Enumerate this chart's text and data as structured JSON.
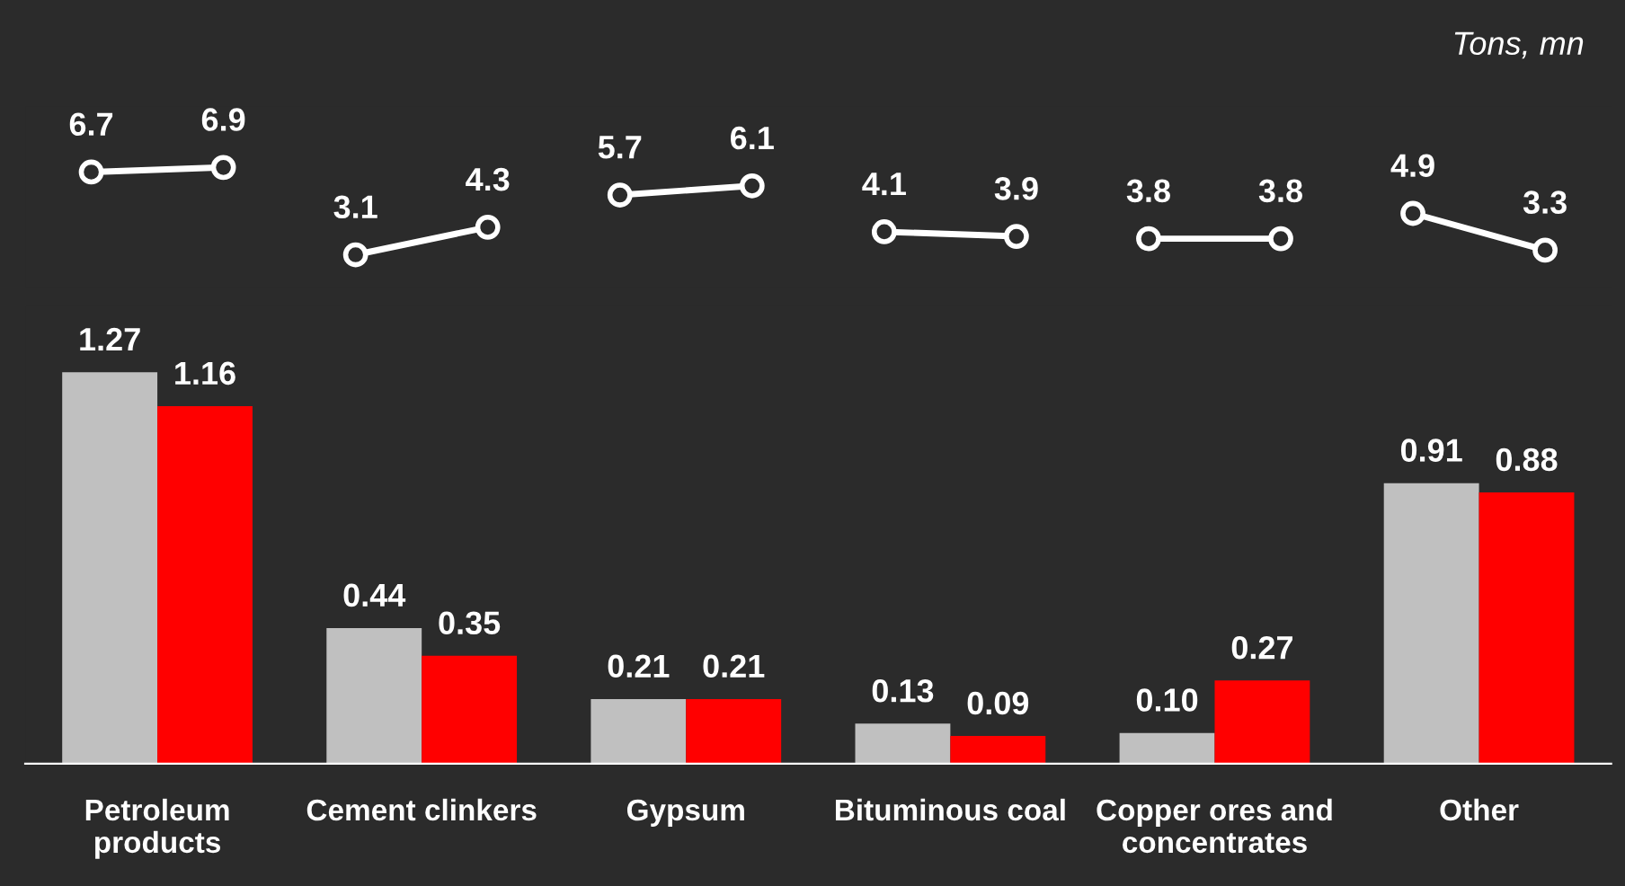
{
  "chart_data": [
    {
      "type": "line",
      "categories": [
        null,
        null,
        null,
        null,
        null,
        null,
        null,
        null,
        null,
        null,
        null,
        null
      ],
      "tick_labels": false,
      "data_labels": true,
      "marker": "circle",
      "line_style": "solid",
      "legend": false,
      "annotations": [
        "Tons, mn"
      ],
      "series": [
        {
          "color": "#ffffff",
          "values": [
            6.7,
            6.9,
            null,
            null,
            null,
            null,
            null,
            null,
            null,
            null,
            null,
            null
          ]
        },
        {
          "color": "#ffffff",
          "values": [
            null,
            null,
            3.1,
            4.3,
            null,
            null,
            null,
            null,
            null,
            null,
            null,
            null
          ]
        },
        {
          "color": "#ffffff",
          "values": [
            null,
            null,
            null,
            null,
            5.7,
            6.1,
            null,
            null,
            null,
            null,
            null,
            null
          ]
        },
        {
          "color": "#ffffff",
          "values": [
            null,
            null,
            null,
            null,
            null,
            null,
            4.1,
            3.9,
            null,
            null,
            null,
            null
          ]
        },
        {
          "color": "#ffffff",
          "values": [
            null,
            null,
            null,
            null,
            null,
            null,
            null,
            null,
            3.8,
            3.8,
            null,
            null
          ]
        },
        {
          "color": "#ffffff",
          "values": [
            null,
            null,
            null,
            null,
            null,
            null,
            null,
            null,
            null,
            null,
            4.9,
            3.3
          ]
        }
      ]
    },
    {
      "type": "bar",
      "categories": [
        "Petroleum\nproducts",
        "Cement clinkers",
        "Gypsum",
        "Bituminous coal",
        "Copper ores and\nconcentrates",
        "Other"
      ],
      "tick_labels": "x",
      "legend": false,
      "grid": false,
      "series": [
        {
          "color": "#c0c0c0",
          "values": [
            1.27,
            0.44,
            0.21,
            0.13,
            0.1,
            0.91
          ],
          "value_labels": [
            "1.27",
            "0.44",
            "0.21",
            "0.13",
            "0.10",
            "0.91"
          ]
        },
        {
          "color": "#ff0000",
          "values": [
            1.16,
            0.35,
            0.21,
            0.09,
            0.27,
            0.88
          ],
          "value_labels": [
            "1.16",
            "0.35",
            "0.21",
            "0.09",
            "0.27",
            "0.88"
          ]
        }
      ]
    }
  ]
}
